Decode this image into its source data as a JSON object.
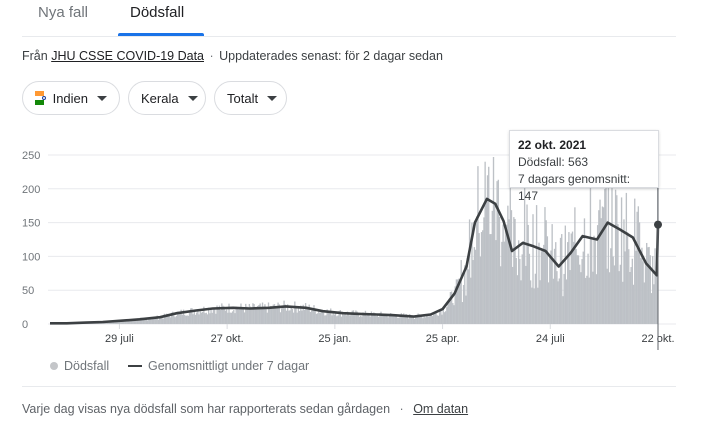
{
  "tabs": [
    {
      "label": "Nya fall",
      "active": false
    },
    {
      "label": "Dödsfall",
      "active": true
    }
  ],
  "source": {
    "prefix": "Från",
    "link": "JHU CSSE COVID-19 Data",
    "separator": "·",
    "updated": "Uppdaterades senast: för 2 dagar sedan"
  },
  "filters": [
    {
      "label": "Indien",
      "icon": "india-flag-icon"
    },
    {
      "label": "Kerala"
    },
    {
      "label": "Totalt"
    }
  ],
  "tooltip": {
    "date": "22 okt. 2021",
    "deaths": "Dödsfall: 563",
    "average": "7 dagars genomsnitt: 147"
  },
  "legend": {
    "bars": "Dödsfall",
    "line": "Genomsnittligt under 7 dagar"
  },
  "footer": {
    "text": "Varje dag visas nya dödsfall som har rapporterats sedan gårdagen",
    "separator": "·",
    "link": "Om datan"
  },
  "colors": {
    "bars": "#bdc1c6",
    "line": "#3c4043",
    "tab_active": "#1a73e8",
    "flag_saffron": "#ff9933",
    "flag_green": "#138808"
  },
  "chart_data": {
    "type": "bar",
    "title": "",
    "xlabel": "",
    "ylabel": "",
    "ylim": [
      0,
      250
    ],
    "y_ticks": [
      0,
      50,
      100,
      150,
      200,
      250
    ],
    "x_tick_labels": [
      {
        "label": "29 juli",
        "date": "2020-07-29"
      },
      {
        "label": "27 okt.",
        "date": "2020-10-27"
      },
      {
        "label": "25 jan.",
        "date": "2021-01-25"
      },
      {
        "label": "25 apr.",
        "date": "2021-04-25"
      },
      {
        "label": "24 juli",
        "date": "2021-07-24"
      },
      {
        "label": "22 okt.",
        "date": "2021-10-22"
      }
    ],
    "grid": true,
    "legend_position": "bottom-left",
    "series": [
      {
        "name": "Genomsnittligt under 7 dagar",
        "type": "line",
        "points": [
          [
            "2020-06-01",
            1
          ],
          [
            "2020-06-15",
            1
          ],
          [
            "2020-07-01",
            2
          ],
          [
            "2020-07-15",
            3
          ],
          [
            "2020-08-01",
            5
          ],
          [
            "2020-08-15",
            7
          ],
          [
            "2020-09-01",
            10
          ],
          [
            "2020-09-15",
            16
          ],
          [
            "2020-10-01",
            20
          ],
          [
            "2020-10-15",
            23
          ],
          [
            "2020-11-01",
            24
          ],
          [
            "2020-11-15",
            23
          ],
          [
            "2020-12-01",
            24
          ],
          [
            "2020-12-15",
            26
          ],
          [
            "2021-01-01",
            24
          ],
          [
            "2021-01-15",
            19
          ],
          [
            "2021-02-01",
            16
          ],
          [
            "2021-02-15",
            15
          ],
          [
            "2021-03-01",
            14
          ],
          [
            "2021-03-15",
            13
          ],
          [
            "2021-04-01",
            11
          ],
          [
            "2021-04-15",
            14
          ],
          [
            "2021-04-25",
            22
          ],
          [
            "2021-05-05",
            45
          ],
          [
            "2021-05-15",
            85
          ],
          [
            "2021-05-22",
            150
          ],
          [
            "2021-06-01",
            185
          ],
          [
            "2021-06-08",
            178
          ],
          [
            "2021-06-15",
            152
          ],
          [
            "2021-06-22",
            108
          ],
          [
            "2021-07-01",
            120
          ],
          [
            "2021-07-10",
            115
          ],
          [
            "2021-07-20",
            108
          ],
          [
            "2021-07-31",
            85
          ],
          [
            "2021-08-10",
            105
          ],
          [
            "2021-08-20",
            130
          ],
          [
            "2021-09-01",
            125
          ],
          [
            "2021-09-10",
            150
          ],
          [
            "2021-09-20",
            140
          ],
          [
            "2021-10-01",
            128
          ],
          [
            "2021-10-12",
            90
          ],
          [
            "2021-10-21",
            72
          ],
          [
            "2021-10-22",
            147
          ]
        ]
      },
      {
        "name": "Dödsfall",
        "type": "bar",
        "note_peak": {
          "date": "2021-10-22",
          "value": 563
        }
      }
    ]
  }
}
